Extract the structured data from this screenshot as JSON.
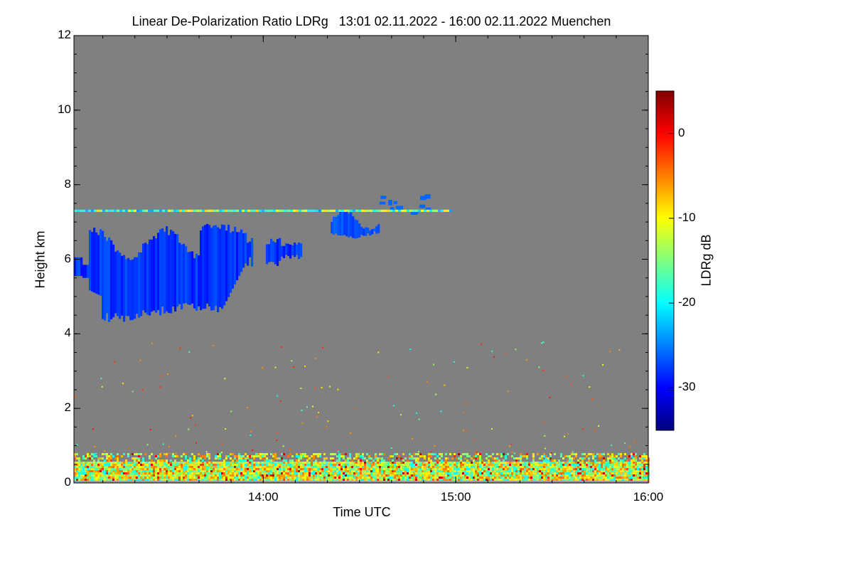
{
  "chart_data": {
    "type": "heatmap",
    "title": "Linear De-Polarization Ratio LDRg   13:01 02.11.2022 - 16:00 02.11.2022 Muenchen",
    "xlabel": "Time UTC",
    "ylabel": "Height km",
    "x_range_hours": [
      13.0167,
      16.0
    ],
    "x_ticks": [
      {
        "value": 14.0,
        "label": "14:00"
      },
      {
        "value": 15.0,
        "label": "15:00"
      },
      {
        "value": 16.0,
        "label": "16:00"
      }
    ],
    "ylim": [
      0,
      12
    ],
    "y_ticks": [
      0,
      2,
      4,
      6,
      8,
      10,
      12
    ],
    "colorbar": {
      "label": "LDRg dB",
      "range": [
        -35,
        5
      ],
      "ticks": [
        0,
        -10,
        -20,
        -30
      ],
      "colors": [
        "#00007f",
        "#0000ff",
        "#007fff",
        "#00ffff",
        "#7fff7f",
        "#ffff00",
        "#ff7f00",
        "#ff0000",
        "#7f0000"
      ]
    },
    "background_color": "#808080",
    "features": [
      {
        "name": "cirrus cloud",
        "t_start": 13.0167,
        "t_end": 14.2,
        "h_bottom": 4.3,
        "h_top": 7.0,
        "ldr_db": -28
      },
      {
        "name": "upper cloud patch",
        "t_start": 14.35,
        "t_end": 14.6,
        "h_bottom": 6.5,
        "h_top": 7.3,
        "ldr_db": -27
      },
      {
        "name": "streaks",
        "t_start": 14.6,
        "t_end": 14.85,
        "h_bottom": 7.1,
        "h_top": 7.9,
        "ldr_db": -26
      },
      {
        "name": "artifact line",
        "t_start": 13.0167,
        "t_end": 14.97,
        "h_bottom": 7.27,
        "h_top": 7.33,
        "ldr_db": -14
      },
      {
        "name": "boundary layer noise",
        "t_start": 13.0167,
        "t_end": 16.0,
        "h_bottom": 0.0,
        "h_top": 0.8,
        "ldr_db": -13
      }
    ]
  }
}
